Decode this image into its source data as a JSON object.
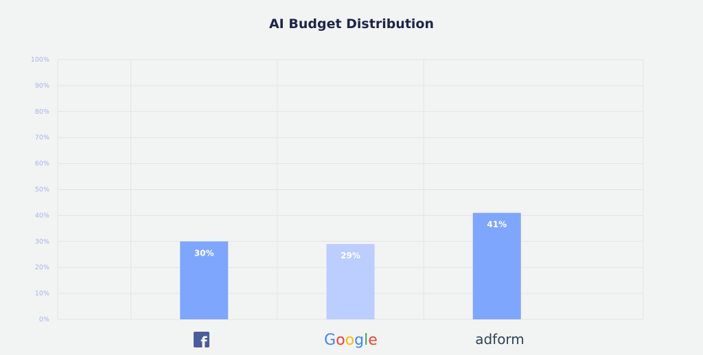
{
  "chart_data": {
    "type": "bar",
    "title": "AI Budget Distribution",
    "xlabel": "",
    "ylabel": "",
    "categories": [
      "Facebook",
      "Google",
      "adform"
    ],
    "values": [
      30,
      29,
      41
    ],
    "data_labels": [
      "30%",
      "29%",
      "41%"
    ],
    "bar_colors": [
      "#7fa6fd",
      "#bccdff",
      "#7fa6fd"
    ],
    "ylim": [
      0,
      100
    ],
    "yticks": [
      "0%",
      "10%",
      "20%",
      "30%",
      "40%",
      "50%",
      "60%",
      "70%",
      "80%",
      "90%",
      "100%"
    ],
    "grid": true,
    "legend": "none"
  },
  "logos": {
    "facebook": "f",
    "google": "Google",
    "adform": "adform"
  },
  "colors": {
    "background": "#f2f3f3",
    "grid": "#e1e4e6",
    "tick_text": "#a9b6e8",
    "title": "#1f2447",
    "facebook_blue": "#4a5c9b",
    "google_blue": "#4285f4",
    "google_red": "#ea4335",
    "google_yellow": "#fbbc05",
    "google_green": "#34a853"
  }
}
